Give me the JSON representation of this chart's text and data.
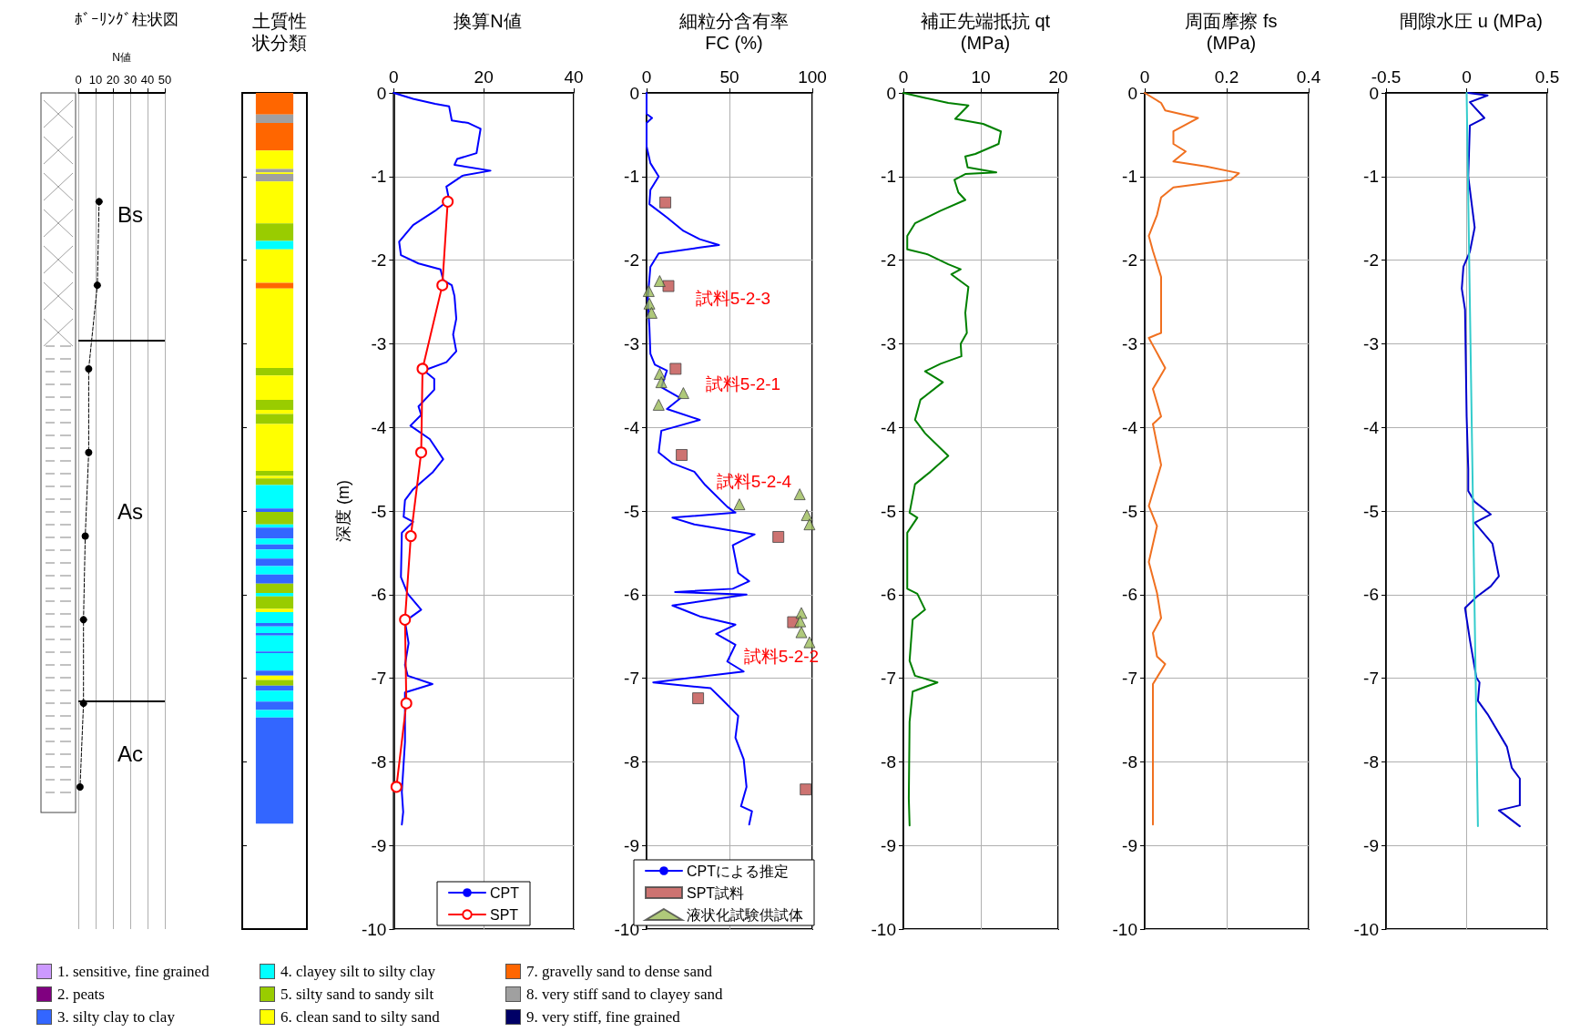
{
  "chart_data": [
    {
      "type": "line",
      "title": "ﾎﾞｰﾘﾝｸﾞ柱状図",
      "xlabel": "N値",
      "xlim": [
        0,
        50
      ],
      "xticks": [
        0,
        10,
        20,
        30,
        40,
        50
      ],
      "ylim": [
        -10,
        0
      ],
      "tick_labels": "x",
      "grid": "x",
      "series": [
        {
          "color": "#000000",
          "marker": "circle",
          "line_style": "dashed",
          "x": [
            12,
            11,
            6,
            6,
            4,
            3,
            3,
            1
          ],
          "values": [
            -1.3,
            -2.3,
            -3.3,
            -4.3,
            -5.3,
            -6.3,
            -7.3,
            -8.3
          ]
        }
      ],
      "ref_lines": [
        {
          "axis": "y",
          "value": 0
        },
        {
          "axis": "y",
          "value": -2.96
        },
        {
          "axis": "y",
          "value": -7.27
        }
      ],
      "annotations": [
        "Bs",
        "As",
        "Ac"
      ]
    },
    {
      "type": "bar",
      "title": "土質性状分類",
      "stacked": true,
      "categories": [
        null
      ],
      "ylim": [
        -10,
        0
      ],
      "yticks": [
        0,
        -1,
        -2,
        -3,
        -4,
        -5,
        -6,
        -7,
        -8,
        -9,
        -10
      ],
      "tick_labels": false,
      "series": [
        {
          "color": "#ff6600",
          "values": [
            -0.26
          ]
        },
        {
          "color": "#a0a0a0",
          "values": [
            -0.1
          ]
        },
        {
          "color": "#ff6600",
          "values": [
            -0.33
          ]
        },
        {
          "color": "#ffff00",
          "values": [
            -0.22
          ]
        },
        {
          "color": "#a0a0a0",
          "values": [
            -0.04
          ]
        },
        {
          "color": "#ffff00",
          "values": [
            -0.02
          ]
        },
        {
          "color": "#a0a0a0",
          "values": [
            -0.09
          ]
        },
        {
          "color": "#ffff00",
          "values": [
            -0.5
          ]
        },
        {
          "color": "#99cc00",
          "values": [
            -0.21
          ]
        },
        {
          "color": "#00ffff",
          "values": [
            -0.1
          ]
        },
        {
          "color": "#ffff00",
          "values": [
            -0.4
          ]
        },
        {
          "color": "#ff6600",
          "values": [
            -0.07
          ]
        },
        {
          "color": "#ffff00",
          "values": [
            -0.95
          ]
        },
        {
          "color": "#99cc00",
          "values": [
            -0.09
          ]
        },
        {
          "color": "#ffff00",
          "values": [
            -0.29
          ]
        },
        {
          "color": "#99cc00",
          "values": [
            -0.12
          ]
        },
        {
          "color": "#ffff00",
          "values": [
            -0.05
          ]
        },
        {
          "color": "#99cc00",
          "values": [
            -0.12
          ]
        },
        {
          "color": "#ffff00",
          "values": [
            -0.56
          ]
        },
        {
          "color": "#99cc00",
          "values": [
            -0.06
          ]
        },
        {
          "color": "#ffff00",
          "values": [
            -0.03
          ]
        },
        {
          "color": "#99cc00",
          "values": [
            -0.08
          ]
        },
        {
          "color": "#00ffff",
          "values": [
            -0.28
          ]
        },
        {
          "color": "#3366ff",
          "values": [
            -0.04
          ]
        },
        {
          "color": "#99cc00",
          "values": [
            -0.15
          ]
        },
        {
          "color": "#00ffff",
          "values": [
            -0.04
          ]
        },
        {
          "color": "#3366ff",
          "values": [
            -0.13
          ]
        },
        {
          "color": "#00ffff",
          "values": [
            -0.07
          ]
        },
        {
          "color": "#3366ff",
          "values": [
            -0.06
          ]
        },
        {
          "color": "#00ffff",
          "values": [
            -0.11
          ]
        },
        {
          "color": "#3366ff",
          "values": [
            -0.09
          ]
        },
        {
          "color": "#00ffff",
          "values": [
            -0.1
          ]
        },
        {
          "color": "#3366ff",
          "values": [
            -0.11
          ]
        },
        {
          "color": "#99cc00",
          "values": [
            -0.11
          ]
        },
        {
          "color": "#00ffff",
          "values": [
            -0.04
          ]
        },
        {
          "color": "#99cc00",
          "values": [
            -0.15
          ]
        },
        {
          "color": "#ffff00",
          "values": [
            -0.04
          ]
        },
        {
          "color": "#00ffff",
          "values": [
            -0.13
          ]
        },
        {
          "color": "#3366ff",
          "values": [
            -0.04
          ]
        },
        {
          "color": "#00ffff",
          "values": [
            -0.08
          ]
        },
        {
          "color": "#3366ff",
          "values": [
            -0.03
          ]
        },
        {
          "color": "#00ffff",
          "values": [
            -0.19
          ]
        },
        {
          "color": "#3366ff",
          "values": [
            -0.02
          ]
        },
        {
          "color": "#00ffff",
          "values": [
            -0.21
          ]
        },
        {
          "color": "#3366ff",
          "values": [
            -0.06
          ]
        },
        {
          "color": "#ffff00",
          "values": [
            -0.05
          ]
        },
        {
          "color": "#99cc00",
          "values": [
            -0.07
          ]
        },
        {
          "color": "#3366ff",
          "values": [
            -0.06
          ]
        },
        {
          "color": "#00ffff",
          "values": [
            -0.13
          ]
        },
        {
          "color": "#3366ff",
          "values": [
            -0.1
          ]
        },
        {
          "color": "#00ffff",
          "values": [
            -0.09
          ]
        },
        {
          "color": "#3366ff",
          "values": [
            -1.27
          ]
        }
      ]
    },
    {
      "type": "line",
      "title": "換算N値",
      "ylabel": "深度 (m)",
      "xlim": [
        0,
        40
      ],
      "xticks": [
        0,
        20,
        40
      ],
      "ylim": [
        -10,
        0
      ],
      "yticks": [
        0,
        -1,
        -2,
        -3,
        -4,
        -5,
        -6,
        -7,
        -8,
        -9,
        -10
      ],
      "grid": true,
      "legend": "bottom",
      "series": [
        {
          "name": "CPT",
          "color": "#0000ff",
          "marker": "none",
          "x": [
            0,
            4.3,
            9.2,
            12.3,
            12.9,
            16.6,
            19.3,
            18.4,
            14.1,
            13.5,
            21.5,
            15.3,
            11.7,
            12.3,
            9.2,
            4.3,
            1.2,
            1.6,
            5.5,
            10.4,
            11.0,
            12.9,
            13.5,
            13.9,
            13.2,
            13.9,
            11.7,
            6.7,
            9.0,
            9.0,
            5.5,
            6.1,
            3.7,
            8.0,
            11.0,
            8.6,
            4.3,
            2.5,
            2.2,
            4.3,
            1.8,
            1.6,
            3.1,
            6.1,
            2.5,
            3.3,
            2.5,
            3.1,
            8.6,
            2.5,
            2.5,
            1.8,
            2.1,
            1.8
          ],
          "values": [
            0,
            -0.07,
            -0.13,
            -0.16,
            -0.33,
            -0.36,
            -0.43,
            -0.72,
            -0.79,
            -0.86,
            -0.93,
            -0.99,
            -1.12,
            -1.28,
            -1.41,
            -1.58,
            -1.78,
            -1.94,
            -2.04,
            -2.11,
            -2.24,
            -2.3,
            -2.43,
            -2.7,
            -2.89,
            -3.09,
            -3.22,
            -3.32,
            -3.42,
            -3.55,
            -3.75,
            -3.85,
            -3.98,
            -4.14,
            -4.38,
            -4.54,
            -4.74,
            -4.87,
            -5.07,
            -5.13,
            -5.26,
            -5.79,
            -5.99,
            -6.18,
            -6.32,
            -6.58,
            -6.84,
            -6.97,
            -7.07,
            -7.17,
            -7.76,
            -8.36,
            -8.6,
            -8.75
          ]
        },
        {
          "name": "SPT",
          "color": "#ff0000",
          "marker": "circle",
          "x": [
            12.0,
            10.8,
            6.4,
            6.1,
            3.8,
            2.5,
            2.8,
            0.6
          ],
          "values": [
            -1.3,
            -2.3,
            -3.3,
            -4.3,
            -5.3,
            -6.3,
            -7.3,
            -8.3
          ]
        }
      ]
    },
    {
      "type": "line",
      "title": "細粒分含有率",
      "subtitle": "FC (%)",
      "xlim": [
        0,
        100
      ],
      "xticks": [
        0,
        50,
        100
      ],
      "ylim": [
        -10,
        0
      ],
      "yticks": [
        0,
        -1,
        -2,
        -3,
        -4,
        -5,
        -6,
        -7,
        -8,
        -9,
        -10
      ],
      "grid": true,
      "legend": "bottom",
      "series": [
        {
          "name": "CPTによる推定",
          "color": "#0000ff",
          "marker": "none",
          "x": [
            0,
            0,
            3.3,
            0,
            0,
            2.3,
            7.3,
            2.3,
            1.7,
            12.3,
            22.2,
            32.1,
            43.7,
            32.1,
            7.3,
            2.3,
            0.7,
            1.7,
            2.3,
            5,
            12.3,
            8.9,
            20.5,
            12.3,
            32.1,
            8.9,
            7.3,
            15.6,
            28.8,
            35.4,
            48.7,
            53.6,
            15.6,
            28.8,
            65.2,
            52,
            55.3,
            61.9,
            52,
            17.2,
            60.3,
            15.6,
            32.1,
            53.6,
            42,
            53.6,
            48.7,
            58.6,
            4,
            38.7,
            45.4,
            55.3,
            53.6,
            58.6,
            60.3,
            57,
            63.6,
            61.9
          ],
          "values": [
            0,
            -0.25,
            -0.3,
            -0.36,
            -0.64,
            -0.84,
            -1.0,
            -1.16,
            -1.33,
            -1.49,
            -1.65,
            -1.75,
            -1.82,
            -1.85,
            -1.92,
            -2.08,
            -2.47,
            -2.8,
            -3.12,
            -3.25,
            -3.32,
            -3.52,
            -3.65,
            -3.78,
            -3.91,
            -4.04,
            -4.3,
            -4.43,
            -4.53,
            -4.69,
            -4.95,
            -5.02,
            -5.08,
            -5.16,
            -5.28,
            -5.41,
            -5.74,
            -5.84,
            -5.93,
            -5.97,
            -6.0,
            -6.13,
            -6.26,
            -6.36,
            -6.47,
            -6.6,
            -6.8,
            -6.92,
            -7.05,
            -7.12,
            -7.25,
            -7.45,
            -7.71,
            -7.97,
            -8.3,
            -8.53,
            -8.59,
            -8.75
          ]
        },
        {
          "name": "SPT試料",
          "type": "scatter",
          "color": "#c0504d",
          "marker": "square",
          "x": [
            11.3,
            13.2,
            17.5,
            21.2,
            79.5,
            88.4,
            31.1,
            96
          ],
          "values": [
            -1.31,
            -2.31,
            -3.3,
            -4.33,
            -5.31,
            -6.33,
            -7.24,
            -8.33
          ]
        },
        {
          "name": "液状化試験供試体",
          "type": "scatter",
          "color": "#9bbb59",
          "marker": "triangle",
          "x": [
            7.9,
            1.3,
            1.7,
            3,
            7.9,
            8.9,
            22.2,
            7.3,
            56,
            92.4,
            96.7,
            98.3,
            93.4,
            92.7,
            93.4,
            98.3
          ],
          "values": [
            -2.25,
            -2.37,
            -2.52,
            -2.63,
            -3.36,
            -3.46,
            -3.59,
            -3.73,
            -4.92,
            -4.8,
            -5.05,
            -5.16,
            -6.22,
            -6.32,
            -6.45,
            -6.57
          ]
        }
      ],
      "annotations": [
        "試料5-2-3",
        "試料5-2-1",
        "試料5-2-4",
        "試料5-2-2"
      ]
    },
    {
      "type": "line",
      "title": "補正先端抵抗 qt",
      "subtitle": "(MPa)",
      "xlim": [
        0,
        20
      ],
      "xticks": [
        0,
        10,
        20
      ],
      "ylim": [
        -10,
        0
      ],
      "yticks": [
        0,
        -1,
        -2,
        -3,
        -4,
        -5,
        -6,
        -7,
        -8,
        -9,
        -10
      ],
      "grid": true,
      "series": [
        {
          "color": "#008000",
          "marker": "none",
          "x": [
            0,
            2.8,
            5.8,
            8.4,
            6.7,
            10.3,
            12.6,
            12.3,
            9.3,
            8.0,
            8.3,
            12,
            8.0,
            6.6,
            7.1,
            8,
            4.8,
            1.5,
            0.5,
            0.5,
            3.1,
            5.8,
            7.4,
            6.2,
            8.4,
            8,
            8.2,
            7.4,
            7.5,
            4.8,
            2.8,
            5.1,
            2.2,
            1.5,
            2.8,
            5.8,
            3.5,
            1.5,
            0.8,
            1.8,
            0.5,
            0.5,
            1.8,
            2.8,
            1.2,
            0.8,
            1.5,
            4.4,
            1.2,
            0.8,
            0.7,
            0.8
          ],
          "values": [
            0,
            -0.06,
            -0.12,
            -0.15,
            -0.31,
            -0.37,
            -0.46,
            -0.61,
            -0.73,
            -0.76,
            -0.89,
            -0.95,
            -0.97,
            -1.04,
            -1.19,
            -1.28,
            -1.41,
            -1.56,
            -1.71,
            -1.87,
            -1.93,
            -2.05,
            -2.11,
            -2.17,
            -2.32,
            -2.63,
            -2.87,
            -3.0,
            -3.15,
            -3.24,
            -3.33,
            -3.46,
            -3.67,
            -3.91,
            -4.07,
            -4.34,
            -4.53,
            -4.68,
            -5.02,
            -5.08,
            -5.26,
            -5.93,
            -5.99,
            -6.18,
            -6.3,
            -6.79,
            -6.97,
            -7.05,
            -7.16,
            -7.52,
            -8.44,
            -8.76
          ]
        }
      ]
    },
    {
      "type": "line",
      "title": "周面摩擦 fs",
      "subtitle": "(MPa)",
      "xlim": [
        0,
        0.4
      ],
      "xticks": [
        0,
        0.2,
        0.4
      ],
      "ylim": [
        -10,
        0
      ],
      "yticks": [
        0,
        -1,
        -2,
        -3,
        -4,
        -5,
        -6,
        -7,
        -8,
        -9,
        -10
      ],
      "grid": true,
      "series": [
        {
          "color": "#f07020",
          "marker": "none",
          "x": [
            0,
            0.04,
            0.05,
            0.13,
            0.07,
            0.07,
            0.1,
            0.07,
            0.15,
            0.23,
            0.21,
            0.07,
            0.04,
            0.03,
            0.01,
            0.02,
            0.04,
            0.04,
            0.01,
            0.05,
            0.02,
            0.04,
            0.02,
            0.04,
            0.01,
            0.03,
            0.01,
            0.03,
            0.04,
            0.02,
            0.03,
            0.05,
            0.02,
            0.02,
            0.02
          ],
          "values": [
            0,
            -0.12,
            -0.21,
            -0.3,
            -0.46,
            -0.61,
            -0.7,
            -0.82,
            -0.88,
            -0.96,
            -1.04,
            -1.13,
            -1.25,
            -1.46,
            -1.71,
            -1.89,
            -2.2,
            -2.87,
            -2.93,
            -3.29,
            -3.54,
            -3.87,
            -3.96,
            -4.45,
            -4.94,
            -5.18,
            -5.61,
            -5.98,
            -6.28,
            -6.46,
            -6.74,
            -6.83,
            -7.07,
            -8.41,
            -8.75
          ]
        }
      ]
    },
    {
      "type": "line",
      "title": "間隙水圧 u (MPa)",
      "xlim": [
        -0.5,
        0.5
      ],
      "xticks": [
        -0.5,
        0,
        0.5
      ],
      "ylim": [
        -10,
        0
      ],
      "yticks": [
        0,
        -1,
        -2,
        -3,
        -4,
        -5,
        -6,
        -7,
        -8,
        -9,
        -10
      ],
      "grid": true,
      "series": [
        {
          "color": "#0000cc",
          "marker": "none",
          "x": [
            0.01,
            0.13,
            0.02,
            0.11,
            0.02,
            0.01,
            0.05,
            0.02,
            -0.02,
            -0.03,
            -0.01,
            0,
            0.01,
            0.01,
            0.05,
            0.15,
            0.05,
            0.16,
            0.2,
            0.15,
            0.06,
            -0.01,
            0.02,
            0.06,
            0.08,
            0.07,
            0.13,
            0.25,
            0.28,
            0.33,
            0.33,
            0.2,
            0.33
          ],
          "values": [
            0,
            -0.03,
            -0.11,
            -0.3,
            -0.39,
            -1.0,
            -1.61,
            -1.9,
            -2.08,
            -2.34,
            -2.59,
            -3.87,
            -4.5,
            -4.76,
            -4.89,
            -5.04,
            -5.14,
            -5.39,
            -5.78,
            -5.9,
            -6.03,
            -6.16,
            -6.54,
            -6.99,
            -7.05,
            -7.27,
            -7.43,
            -7.82,
            -8.07,
            -8.2,
            -8.52,
            -8.58,
            -8.77
          ]
        },
        {
          "color": "#33cccc",
          "marker": "none",
          "x": [
            0,
            0.07
          ],
          "values": [
            0,
            -8.77
          ]
        }
      ]
    },
    {
      "type": "other",
      "categories": [
        "1. sensitive, fine grained",
        "2. peats",
        "3. silty clay to clay",
        "4. clayey silt to silty clay",
        "5. silty sand to sandy silt",
        "6. clean sand to silty sand",
        "7. gravelly sand to dense sand",
        "8. very stiff sand to clayey sand",
        "9. very stiff, fine grained"
      ],
      "colors": [
        "#cc99ff",
        "#800080",
        "#3366ff",
        "#00ffff",
        "#99cc00",
        "#ffff00",
        "#ff6600",
        "#a0a0a0",
        "#000066"
      ]
    }
  ]
}
